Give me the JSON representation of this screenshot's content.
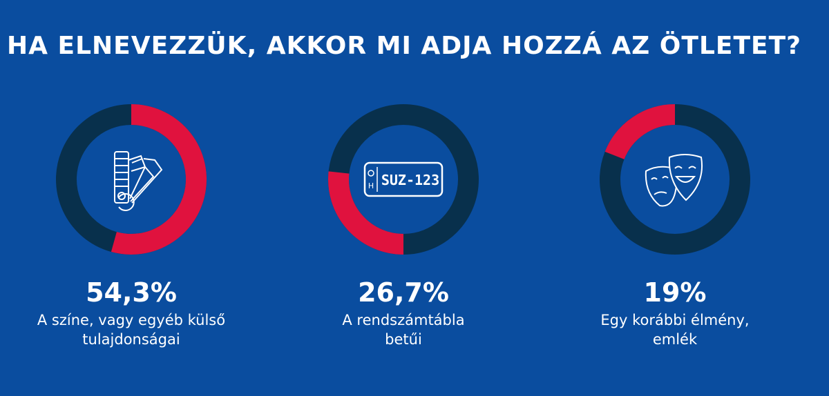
{
  "title": "HA ELNEVEZZÜK, AKKOR MI ADJA HOZZÁ AZ ÖTLETET?",
  "colors": {
    "background": "#0a4d9f",
    "ring_track": "#08304c",
    "ring_highlight": "#e0123e",
    "text": "#ffffff"
  },
  "plate_icon_text": "SUZ-123",
  "plate_icon_letter": "H",
  "chart_data": {
    "type": "pie",
    "style": "donut",
    "items": [
      {
        "value": 54.3,
        "percent_label": "54,3%",
        "label_lines": [
          "A színe, vagy egyéb külső",
          "tulajdonságai"
        ],
        "icon": "color-swatch-icon",
        "start": "top",
        "direction": "clockwise"
      },
      {
        "value": 26.7,
        "percent_label": "26,7%",
        "label_lines": [
          "A rendszámtábla",
          "betűi"
        ],
        "icon": "license-plate-icon",
        "start": "bottom",
        "direction": "clockwise"
      },
      {
        "value": 19,
        "percent_label": "19%",
        "label_lines": [
          "Egy korábbi élmény,",
          "emlék"
        ],
        "icon": "theater-masks-icon",
        "start": "top",
        "direction": "counterclockwise"
      }
    ]
  }
}
